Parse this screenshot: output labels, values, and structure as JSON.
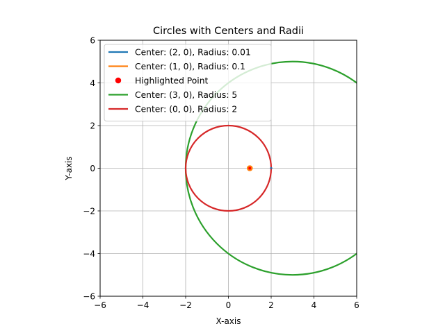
{
  "chart_data": {
    "type": "scatter",
    "title": "Circles with Centers and Radii",
    "xlabel": "X-axis",
    "ylabel": "Y-axis",
    "xlim": [
      -6,
      6
    ],
    "ylim": [
      -6,
      6
    ],
    "xticks": [
      -6,
      -4,
      -2,
      0,
      2,
      4,
      6
    ],
    "yticks": [
      -6,
      -4,
      -2,
      0,
      2,
      4,
      6
    ],
    "xtick_labels": [
      "−6",
      "−4",
      "−2",
      "0",
      "2",
      "4",
      "6"
    ],
    "ytick_labels": [
      "−6",
      "−4",
      "−2",
      "0",
      "2",
      "4",
      "6"
    ],
    "grid": true,
    "legend_position": "top-left",
    "circles": [
      {
        "name": "Center: (2, 0), Radius: 0.01",
        "center": [
          2,
          0
        ],
        "radius": 0.01,
        "color": "#1f77b4"
      },
      {
        "name": "Center: (1, 0), Radius: 0.1",
        "center": [
          1,
          0
        ],
        "radius": 0.1,
        "color": "#ff7f0e"
      },
      {
        "name": "Center: (3, 0), Radius: 5",
        "center": [
          3,
          0
        ],
        "radius": 5,
        "color": "#2ca02c"
      },
      {
        "name": "Center: (0, 0), Radius: 2",
        "center": [
          0,
          0
        ],
        "radius": 2,
        "color": "#d62728"
      }
    ],
    "points": [
      {
        "name": "Highlighted Point",
        "x": 1,
        "y": 0,
        "color": "#ff0000"
      }
    ],
    "legend": [
      {
        "label": "Center: (2, 0), Radius: 0.01",
        "kind": "line",
        "color": "#1f77b4"
      },
      {
        "label": "Center: (1, 0), Radius: 0.1",
        "kind": "line",
        "color": "#ff7f0e"
      },
      {
        "label": "Highlighted Point",
        "kind": "marker",
        "color": "#ff0000"
      },
      {
        "label": "Center: (3, 0), Radius: 5",
        "kind": "line",
        "color": "#2ca02c"
      },
      {
        "label": "Center: (0, 0), Radius: 2",
        "kind": "line",
        "color": "#d62728"
      }
    ]
  }
}
